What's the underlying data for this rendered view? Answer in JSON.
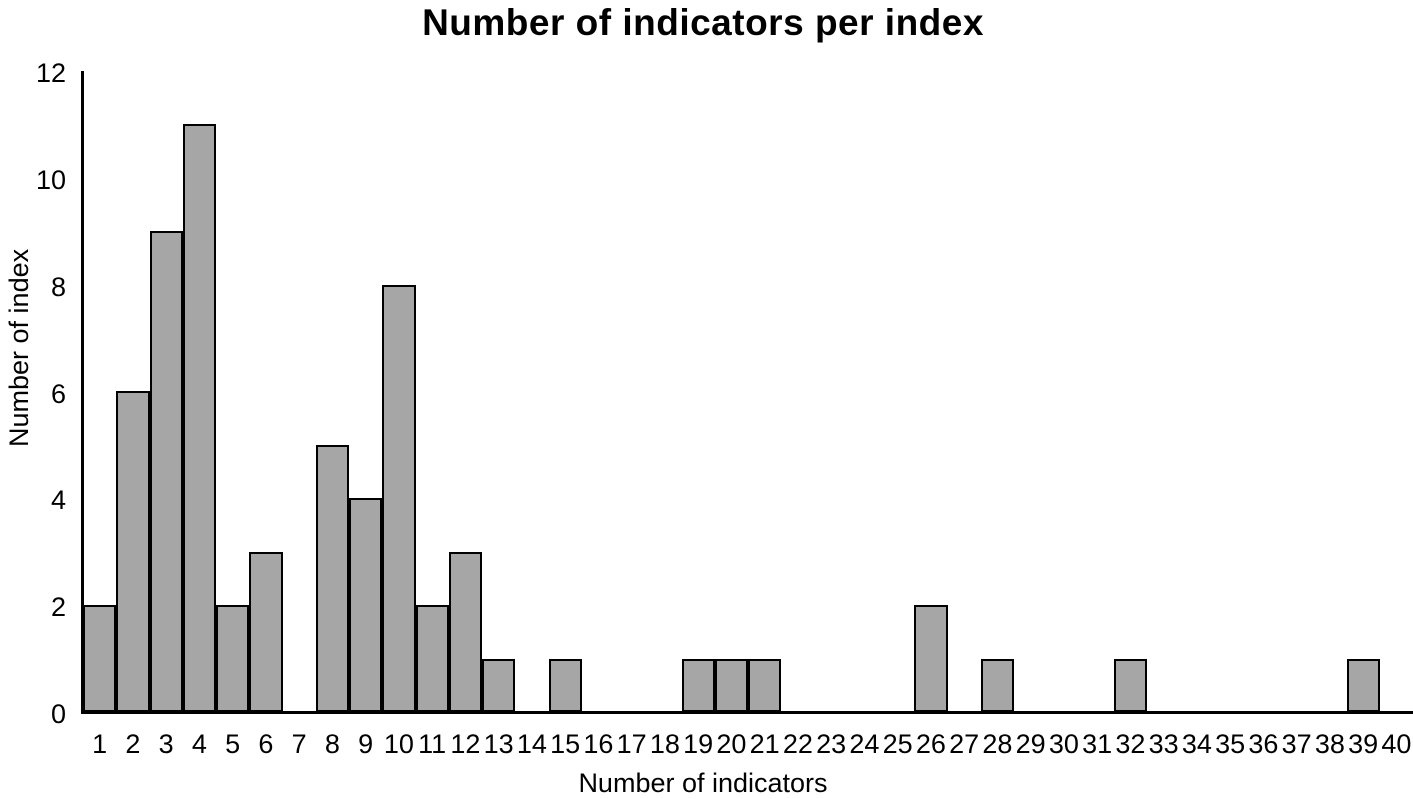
{
  "page": {
    "background": "#ffffff"
  },
  "chart_data": {
    "type": "bar",
    "title": "Number of indicators per index",
    "xlabel": "Number of indicators",
    "ylabel": "Number of index",
    "categories": [
      1,
      2,
      3,
      4,
      5,
      6,
      7,
      8,
      9,
      10,
      11,
      12,
      13,
      14,
      15,
      16,
      17,
      18,
      19,
      20,
      21,
      22,
      23,
      24,
      25,
      26,
      27,
      28,
      29,
      30,
      31,
      32,
      33,
      34,
      35,
      36,
      37,
      38,
      39,
      40
    ],
    "values": [
      2,
      6,
      9,
      11,
      2,
      3,
      0,
      5,
      4,
      8,
      2,
      3,
      1,
      0,
      1,
      0,
      0,
      0,
      1,
      1,
      1,
      0,
      0,
      0,
      0,
      2,
      0,
      1,
      0,
      0,
      0,
      1,
      0,
      0,
      0,
      0,
      0,
      0,
      1,
      0
    ],
    "y_ticks": [
      0,
      2,
      4,
      6,
      8,
      10,
      12
    ],
    "ylim": [
      0,
      12
    ],
    "xlim_labels": [
      1,
      40
    ],
    "grid": false,
    "legend_position": "none",
    "bar_color": "#a6a6a6",
    "bar_border_color": "#000000",
    "axis_color": "#000000",
    "text_color": "#000000"
  }
}
